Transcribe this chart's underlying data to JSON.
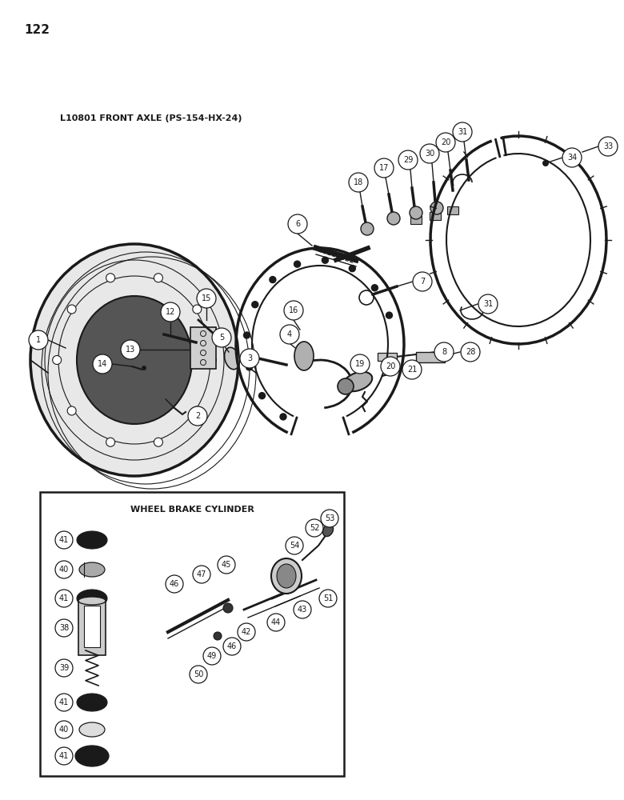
{
  "page_number": "122",
  "title_top": "L10801 FRONT AXLE (PS-154-HX-24)",
  "title_box": "WHEEL BRAKE CYLINDER",
  "bg_color": "#ffffff",
  "line_color": "#1a1a1a",
  "fig_width": 7.8,
  "fig_height": 10.0,
  "dpi": 100
}
